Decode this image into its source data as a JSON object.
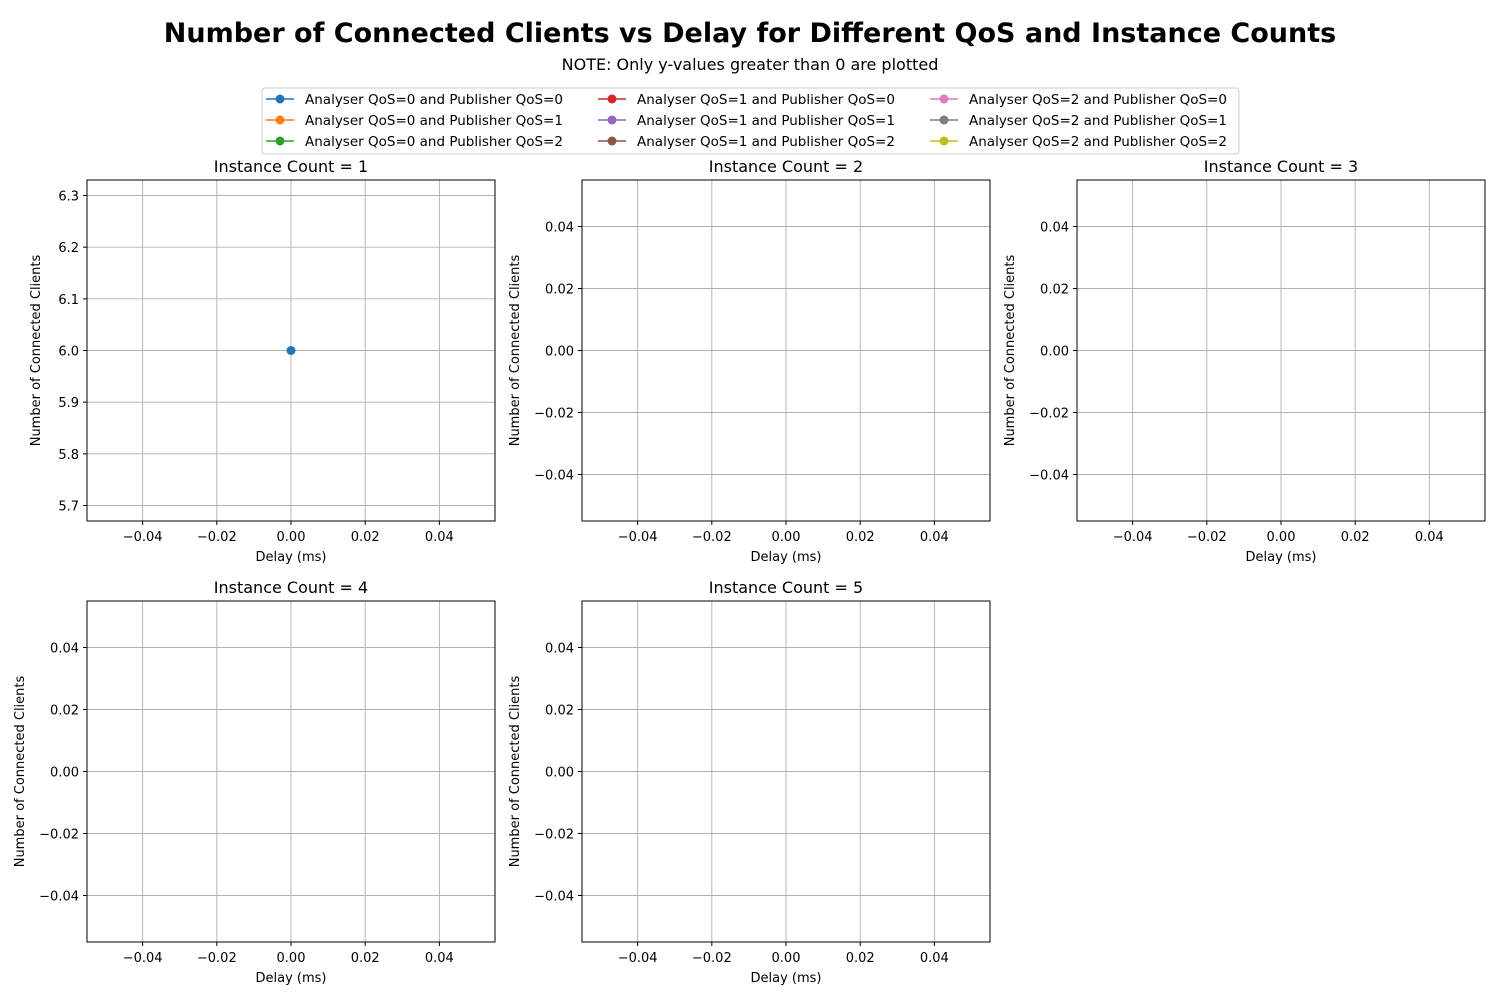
{
  "figure": {
    "title": "Number of Connected Clients vs Delay for Different QoS and Instance Counts",
    "subtitle": "NOTE: Only y-values greater than 0 are plotted"
  },
  "legend": {
    "placement": "top-center",
    "entries": [
      {
        "label": "Analyser QoS=0 and Publisher QoS=0",
        "color": "#1f77b4"
      },
      {
        "label": "Analyser QoS=0 and Publisher QoS=1",
        "color": "#ff7f0e"
      },
      {
        "label": "Analyser QoS=0 and Publisher QoS=2",
        "color": "#2ca02c"
      },
      {
        "label": "Analyser QoS=1 and Publisher QoS=0",
        "color": "#d62728"
      },
      {
        "label": "Analyser QoS=1 and Publisher QoS=1",
        "color": "#9467bd"
      },
      {
        "label": "Analyser QoS=1 and Publisher QoS=2",
        "color": "#8c564b"
      },
      {
        "label": "Analyser QoS=2 and Publisher QoS=0",
        "color": "#e377c2"
      },
      {
        "label": "Analyser QoS=2 and Publisher QoS=1",
        "color": "#7f7f7f"
      },
      {
        "label": "Analyser QoS=2 and Publisher QoS=2",
        "color": "#bcbd22"
      }
    ]
  },
  "chart_data": [
    {
      "type": "line",
      "title": "Instance Count = 1",
      "xlabel": "Delay (ms)",
      "ylabel": "Number of Connected Clients",
      "xlim": [
        -0.055,
        0.055
      ],
      "ylim": [
        5.67,
        6.33
      ],
      "xticks": [
        "−0.04",
        "−0.02",
        "0.00",
        "0.02",
        "0.04"
      ],
      "xtick_values": [
        -0.04,
        -0.02,
        0,
        0.02,
        0.04
      ],
      "yticks": [
        "5.7",
        "5.8",
        "5.9",
        "6.0",
        "6.1",
        "6.2",
        "6.3"
      ],
      "ytick_values": [
        5.7,
        5.8,
        5.9,
        6.0,
        6.1,
        6.2,
        6.3
      ],
      "grid": true,
      "series": [
        {
          "name": "Analyser QoS=0 and Publisher QoS=0",
          "color": "#1f77b4",
          "points": [
            [
              0,
              6
            ]
          ]
        }
      ]
    },
    {
      "type": "line",
      "title": "Instance Count = 2",
      "xlabel": "Delay (ms)",
      "ylabel": "Number of Connected Clients",
      "xlim": [
        -0.055,
        0.055
      ],
      "ylim": [
        -0.055,
        0.055
      ],
      "xticks": [
        "−0.04",
        "−0.02",
        "0.00",
        "0.02",
        "0.04"
      ],
      "xtick_values": [
        -0.04,
        -0.02,
        0,
        0.02,
        0.04
      ],
      "yticks": [
        "−0.04",
        "−0.02",
        "0.00",
        "0.02",
        "0.04"
      ],
      "ytick_values": [
        -0.04,
        -0.02,
        0,
        0.02,
        0.04
      ],
      "grid": true,
      "series": []
    },
    {
      "type": "line",
      "title": "Instance Count = 3",
      "xlabel": "Delay (ms)",
      "ylabel": "Number of Connected Clients",
      "xlim": [
        -0.055,
        0.055
      ],
      "ylim": [
        -0.055,
        0.055
      ],
      "xticks": [
        "−0.04",
        "−0.02",
        "0.00",
        "0.02",
        "0.04"
      ],
      "xtick_values": [
        -0.04,
        -0.02,
        0,
        0.02,
        0.04
      ],
      "yticks": [
        "−0.04",
        "−0.02",
        "0.00",
        "0.02",
        "0.04"
      ],
      "ytick_values": [
        -0.04,
        -0.02,
        0,
        0.02,
        0.04
      ],
      "grid": true,
      "series": []
    },
    {
      "type": "line",
      "title": "Instance Count = 4",
      "xlabel": "Delay (ms)",
      "ylabel": "Number of Connected Clients",
      "xlim": [
        -0.055,
        0.055
      ],
      "ylim": [
        -0.055,
        0.055
      ],
      "xticks": [
        "−0.04",
        "−0.02",
        "0.00",
        "0.02",
        "0.04"
      ],
      "xtick_values": [
        -0.04,
        -0.02,
        0,
        0.02,
        0.04
      ],
      "yticks": [
        "−0.04",
        "−0.02",
        "0.00",
        "0.02",
        "0.04"
      ],
      "ytick_values": [
        -0.04,
        -0.02,
        0,
        0.02,
        0.04
      ],
      "grid": true,
      "series": []
    },
    {
      "type": "line",
      "title": "Instance Count = 5",
      "xlabel": "Delay (ms)",
      "ylabel": "Number of Connected Clients",
      "xlim": [
        -0.055,
        0.055
      ],
      "ylim": [
        -0.055,
        0.055
      ],
      "xticks": [
        "−0.04",
        "−0.02",
        "0.00",
        "0.02",
        "0.04"
      ],
      "xtick_values": [
        -0.04,
        -0.02,
        0,
        0.02,
        0.04
      ],
      "yticks": [
        "−0.04",
        "−0.02",
        "0.00",
        "0.02",
        "0.04"
      ],
      "ytick_values": [
        -0.04,
        -0.02,
        0,
        0.02,
        0.04
      ],
      "grid": true,
      "series": []
    }
  ]
}
